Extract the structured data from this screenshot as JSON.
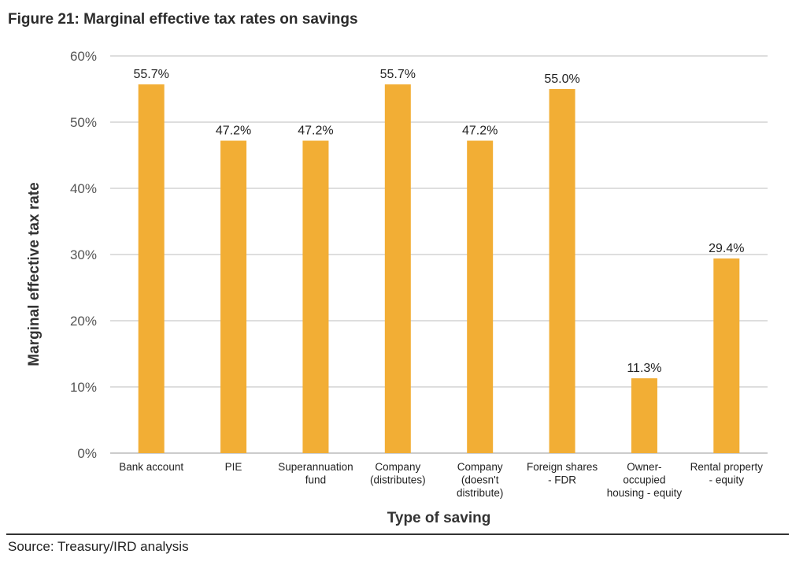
{
  "figure": {
    "title": "Figure 21: Marginal effective tax rates on savings",
    "source": "Source: Treasury/IRD analysis"
  },
  "chart_data": {
    "type": "bar",
    "title": "Figure 21: Marginal effective tax rates on savings",
    "xlabel": "Type of saving",
    "ylabel": "Marginal effective tax rate",
    "ylim": [
      0,
      60
    ],
    "yticks": [
      0,
      10,
      20,
      30,
      40,
      50,
      60
    ],
    "ytick_labels": [
      "0%",
      "10%",
      "20%",
      "30%",
      "40%",
      "50%",
      "60%"
    ],
    "grid": true,
    "bar_color": "#F2AE35",
    "categories": [
      [
        "Bank account"
      ],
      [
        "PIE"
      ],
      [
        "Superannuation",
        "fund"
      ],
      [
        "Company",
        "(distributes)"
      ],
      [
        "Company",
        "(doesn't",
        "distribute)"
      ],
      [
        "Foreign shares",
        "- FDR"
      ],
      [
        "Owner-",
        "occupied",
        "housing - equity"
      ],
      [
        "Rental property",
        "- equity"
      ]
    ],
    "values": [
      55.7,
      47.2,
      47.2,
      55.7,
      47.2,
      55.0,
      11.3,
      29.4
    ],
    "data_labels": [
      "55.7%",
      "47.2%",
      "47.2%",
      "55.7%",
      "47.2%",
      "55.0%",
      "11.3%",
      "29.4%"
    ]
  }
}
